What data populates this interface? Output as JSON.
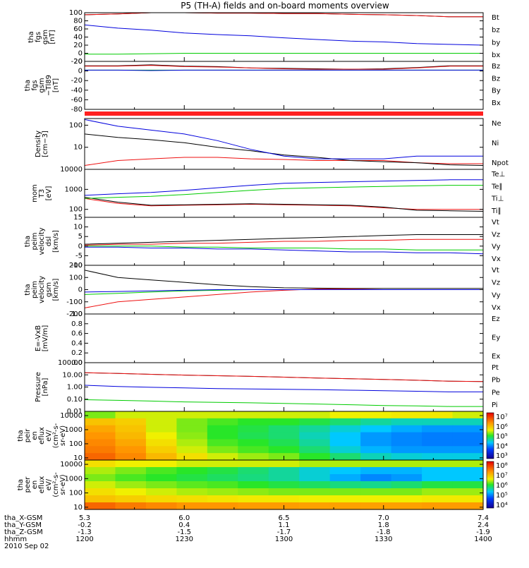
{
  "title": "P5 (TH-A) fields and on-board moments overview",
  "date_label": "2010 Sep 02",
  "colors": {
    "black": "#000000",
    "red": "#ee1111",
    "green": "#00cc00",
    "blue": "#0000dd",
    "status_bar": "#ff2020"
  },
  "time_axis": {
    "rows": [
      {
        "name": "tha_X-GSM",
        "values": [
          "5.3",
          "6.0",
          "6.5",
          "7.0",
          "7.4"
        ]
      },
      {
        "name": "tha_Y-GSM",
        "values": [
          "-0.2",
          "0.4",
          "1.1",
          "1.8",
          "2.4"
        ]
      },
      {
        "name": "tha_Z-GSM",
        "values": [
          "-1.3",
          "-1.5",
          "-1.7",
          "-1.8",
          "-1.9"
        ]
      },
      {
        "name": "hhmm",
        "values": [
          "1200",
          "1230",
          "1300",
          "1330",
          "1400"
        ]
      }
    ]
  },
  "chart_data": [
    {
      "type": "line",
      "ylabel": [
        "tha",
        "fgs",
        "gsm",
        "[nT]"
      ],
      "ylim": [
        -20,
        100
      ],
      "ticks": [
        "100",
        "80",
        "60",
        "40",
        "20",
        "0",
        "-20"
      ],
      "x": [
        "12:00",
        "12:10",
        "12:20",
        "12:30",
        "12:40",
        "12:50",
        "13:00",
        "13:10",
        "13:20",
        "13:30",
        "13:40",
        "13:50",
        "14:00"
      ],
      "series": [
        {
          "name": "Bt",
          "color": "black",
          "values": [
            95,
            97,
            100,
            100,
            99,
            99,
            98,
            98,
            96,
            95,
            93,
            90,
            90
          ]
        },
        {
          "name": "bz",
          "color": "red",
          "values": [
            95,
            97,
            100,
            100,
            99,
            99,
            98,
            98,
            96,
            95,
            93,
            90,
            90
          ]
        },
        {
          "name": "by",
          "color": "green",
          "values": [
            -2,
            -2,
            -1,
            0,
            0,
            0,
            0,
            0,
            0,
            0,
            0,
            0,
            0
          ]
        },
        {
          "name": "bx",
          "color": "blue",
          "values": [
            70,
            62,
            57,
            50,
            46,
            43,
            38,
            34,
            30,
            28,
            24,
            22,
            20
          ]
        }
      ]
    },
    {
      "type": "line",
      "ylabel": [
        "tha",
        "fgs",
        "gsm",
        "−Tl89",
        "[nT]"
      ],
      "ylim": [
        -90,
        20
      ],
      "ticks": [
        "20",
        "0",
        "-20",
        "-40",
        "-60",
        "-80"
      ],
      "x": [
        "12:00",
        "12:10",
        "12:20",
        "12:30",
        "12:40",
        "12:50",
        "13:00",
        "13:10",
        "13:20",
        "13:30",
        "13:40",
        "13:50",
        "14:00"
      ],
      "series": [
        {
          "name": "Bz",
          "color": "black",
          "values": [
            10,
            10,
            12,
            9,
            8,
            5,
            4,
            3,
            2,
            3,
            6,
            10,
            10
          ]
        },
        {
          "name": "Bz",
          "color": "red",
          "values": [
            9,
            9,
            11,
            8,
            7,
            5,
            3,
            2,
            2,
            2,
            5,
            9,
            9
          ]
        },
        {
          "name": "By",
          "color": "green",
          "values": [
            0,
            0,
            0,
            0,
            0,
            0,
            0,
            0,
            0,
            0,
            0,
            0,
            0
          ]
        },
        {
          "name": "Bx",
          "color": "blue",
          "values": [
            0,
            0,
            -1,
            0,
            0,
            0,
            0,
            0,
            0,
            0,
            0,
            0,
            0
          ]
        }
      ]
    },
    {
      "type": "line",
      "ylabel": [
        "Density",
        "[cm−3]"
      ],
      "log": true,
      "ylim": [
        1,
        200
      ],
      "ticks": [
        "100",
        "10"
      ],
      "tick_values": [
        100,
        10
      ],
      "x": [
        "12:00",
        "12:10",
        "12:20",
        "12:30",
        "12:40",
        "12:50",
        "13:00",
        "13:10",
        "13:20",
        "13:30",
        "13:40",
        "13:50",
        "14:00"
      ],
      "series": [
        {
          "name": "Ne",
          "color": "red",
          "values": [
            1.5,
            2.5,
            3,
            3.5,
            3.5,
            3,
            2.8,
            2.5,
            2.5,
            2.5,
            2,
            1.8,
            1.8
          ]
        },
        {
          "name": "Ni",
          "color": "black",
          "values": [
            40,
            28,
            22,
            16,
            10,
            7,
            4.5,
            3.5,
            2.5,
            2.2,
            2,
            1.6,
            1.5
          ]
        },
        {
          "name": "Npot",
          "color": "blue",
          "values": [
            180,
            90,
            60,
            40,
            20,
            8,
            4,
            3,
            3,
            3,
            4,
            4,
            4
          ]
        }
      ]
    },
    {
      "type": "line",
      "ylabel": [
        "mom",
        "T3",
        "[eV]"
      ],
      "log": true,
      "ylim": [
        40,
        10000
      ],
      "ticks": [
        "10000",
        "1000",
        "100"
      ],
      "tick_values": [
        10000,
        1000,
        100
      ],
      "x": [
        "12:00",
        "12:10",
        "12:20",
        "12:30",
        "12:40",
        "12:50",
        "13:00",
        "13:10",
        "13:20",
        "13:30",
        "13:40",
        "13:50",
        "14:00"
      ],
      "series": [
        {
          "name": "Te⊥",
          "color": "red",
          "values": [
            350,
            200,
            150,
            160,
            170,
            180,
            170,
            160,
            150,
            120,
            100,
            100,
            100
          ]
        },
        {
          "name": "Te∥",
          "color": "black",
          "values": [
            400,
            230,
            160,
            170,
            180,
            190,
            180,
            170,
            160,
            130,
            90,
            85,
            80
          ]
        },
        {
          "name": "Ti⊥",
          "color": "blue",
          "values": [
            500,
            600,
            700,
            900,
            1200,
            1600,
            2000,
            2200,
            2400,
            2600,
            2800,
            3000,
            3000
          ]
        },
        {
          "name": "Ti∥",
          "color": "green",
          "values": [
            350,
            400,
            450,
            550,
            700,
            900,
            1100,
            1200,
            1300,
            1400,
            1500,
            1600,
            1600
          ]
        }
      ]
    },
    {
      "type": "line",
      "ylabel": [
        "tha",
        "peim",
        "velocity",
        "dsl",
        "[km/s]"
      ],
      "ylim": [
        -10,
        15
      ],
      "ticks": [
        "15",
        "10",
        "5",
        "0",
        "-5",
        "-10"
      ],
      "x": [
        "12:00",
        "12:10",
        "12:20",
        "12:30",
        "12:40",
        "12:50",
        "13:00",
        "13:10",
        "13:20",
        "13:30",
        "13:40",
        "13:50",
        "14:00"
      ],
      "series": [
        {
          "name": "Vt",
          "color": "black",
          "values": [
            1,
            1.5,
            2,
            2.5,
            3,
            3.5,
            4,
            4.5,
            5,
            5.5,
            6,
            6,
            6
          ]
        },
        {
          "name": "Vz",
          "color": "red",
          "values": [
            0.5,
            1,
            1,
            1.5,
            1.5,
            2,
            2.5,
            2.5,
            3,
            3,
            3.5,
            3.5,
            3.5
          ]
        },
        {
          "name": "Vy",
          "color": "green",
          "values": [
            0,
            0,
            0,
            -0.5,
            -0.5,
            -1,
            -1,
            -1,
            -1.5,
            -1.5,
            -2,
            -2,
            -2
          ]
        },
        {
          "name": "Vx",
          "color": "blue",
          "values": [
            -0.5,
            -0.5,
            -1,
            -1,
            -1.5,
            -1.5,
            -2,
            -2.5,
            -3,
            -3,
            -3.5,
            -3.5,
            -4
          ]
        }
      ]
    },
    {
      "type": "line",
      "ylabel": [
        "tha",
        "peim",
        "velocity",
        "gsm",
        "[km/s]"
      ],
      "ylim": [
        -200,
        200
      ],
      "ticks": [
        "200",
        "100",
        "0",
        "-100",
        "-200"
      ],
      "x": [
        "12:00",
        "12:10",
        "12:20",
        "12:30",
        "12:40",
        "12:50",
        "13:00",
        "13:10",
        "13:20",
        "13:30",
        "13:40",
        "13:50",
        "14:00"
      ],
      "series": [
        {
          "name": "Vt",
          "color": "black",
          "values": [
            160,
            100,
            80,
            60,
            40,
            25,
            15,
            12,
            10,
            10,
            10,
            10,
            10
          ]
        },
        {
          "name": "Vz",
          "color": "red",
          "values": [
            -150,
            -100,
            -80,
            -60,
            -40,
            -20,
            -5,
            5,
            5,
            0,
            0,
            0,
            0
          ]
        },
        {
          "name": "Vy",
          "color": "green",
          "values": [
            -40,
            -30,
            -20,
            -10,
            -5,
            0,
            0,
            0,
            0,
            0,
            0,
            0,
            0
          ]
        },
        {
          "name": "Vx",
          "color": "blue",
          "values": [
            -20,
            -15,
            -10,
            -5,
            0,
            0,
            0,
            0,
            0,
            0,
            0,
            0,
            0
          ]
        }
      ]
    },
    {
      "type": "line",
      "ylabel": [
        "E=-VxB",
        "[mV/m]"
      ],
      "ylim": [
        0,
        1
      ],
      "ticks": [
        "1.0",
        "0.8",
        "0.6",
        "0.4",
        "0.2",
        "0.0"
      ],
      "x": [],
      "series": [
        {
          "name": "Ez",
          "color": "red",
          "values": []
        },
        {
          "name": "Ey",
          "color": "green",
          "values": []
        },
        {
          "name": "Ex",
          "color": "blue",
          "values": []
        }
      ]
    },
    {
      "type": "line",
      "ylabel": [
        "Pressure",
        "[nPa]"
      ],
      "log": true,
      "ylim": [
        0.01,
        100
      ],
      "ticks": [
        "100.00",
        "10.00",
        "1.00",
        "0.10",
        "0.01"
      ],
      "tick_values": [
        100,
        10,
        1,
        0.1,
        0.01
      ],
      "x": [
        "12:00",
        "12:10",
        "12:20",
        "12:30",
        "12:40",
        "12:50",
        "13:00",
        "13:10",
        "13:20",
        "13:30",
        "13:40",
        "13:50",
        "14:00"
      ],
      "series": [
        {
          "name": "Pt",
          "color": "black",
          "values": [
            15,
            13,
            11,
            9.5,
            8.5,
            7.5,
            6.5,
            5.5,
            4.8,
            4.2,
            3.6,
            3.0,
            2.8
          ]
        },
        {
          "name": "Pb",
          "color": "red",
          "values": [
            15,
            13,
            11,
            9.5,
            8.5,
            7.5,
            6.5,
            5.5,
            4.8,
            4.2,
            3.6,
            3.0,
            2.8
          ]
        },
        {
          "name": "Pe",
          "color": "green",
          "values": [
            0.09,
            0.08,
            0.07,
            0.06,
            0.055,
            0.05,
            0.045,
            0.04,
            0.035,
            0.03,
            0.028,
            0.025,
            0.025
          ]
        },
        {
          "name": "Pi",
          "color": "blue",
          "values": [
            1.4,
            1.1,
            0.95,
            0.85,
            0.75,
            0.7,
            0.65,
            0.6,
            0.55,
            0.5,
            0.45,
            0.4,
            0.4
          ]
        }
      ]
    },
    {
      "type": "heatmap",
      "ylabel": [
        "tha",
        "peir",
        "en",
        "eflux",
        "eV/",
        "(cm²-s-",
        "sr-eV)"
      ],
      "log": true,
      "ylim": [
        7,
        20000
      ],
      "ticks": [
        "10000",
        "1000",
        "100",
        "10"
      ],
      "tick_values": [
        10000,
        1000,
        100,
        10
      ],
      "colorbar": {
        "ticks": [
          "10⁷",
          "10⁶",
          "10⁵",
          "10⁴",
          "10³"
        ]
      },
      "x": [
        "12:00",
        "12:10",
        "12:20",
        "12:30",
        "12:40",
        "12:50",
        "13:00",
        "13:10",
        "13:20",
        "13:30",
        "13:40",
        "13:50",
        "14:00"
      ],
      "values": [
        [
          0.55,
          0.6,
          0.6,
          0.6,
          0.6,
          0.6,
          0.6,
          0.6,
          0.62,
          0.62,
          0.63,
          0.63,
          0.6
        ],
        [
          0.7,
          0.68,
          0.6,
          0.55,
          0.52,
          0.5,
          0.5,
          0.48,
          0.45,
          0.42,
          0.4,
          0.4,
          0.4
        ],
        [
          0.75,
          0.7,
          0.6,
          0.55,
          0.5,
          0.48,
          0.45,
          0.42,
          0.38,
          0.35,
          0.32,
          0.3,
          0.3
        ],
        [
          0.78,
          0.72,
          0.62,
          0.56,
          0.5,
          0.47,
          0.45,
          0.4,
          0.35,
          0.3,
          0.28,
          0.27,
          0.27
        ],
        [
          0.8,
          0.75,
          0.65,
          0.58,
          0.52,
          0.5,
          0.47,
          0.42,
          0.35,
          0.3,
          0.28,
          0.27,
          0.27
        ],
        [
          0.82,
          0.78,
          0.68,
          0.6,
          0.55,
          0.52,
          0.5,
          0.45,
          0.38,
          0.33,
          0.3,
          0.3,
          0.3
        ],
        [
          0.85,
          0.8,
          0.72,
          0.65,
          0.6,
          0.57,
          0.55,
          0.5,
          0.45,
          0.4,
          0.38,
          0.37,
          0.37
        ]
      ]
    },
    {
      "type": "heatmap",
      "ylabel": [
        "tha",
        "peer",
        "en",
        "eflux",
        "eV/",
        "(cm²-s-",
        "sr-eV)"
      ],
      "log": true,
      "ylim": [
        7,
        20000
      ],
      "ticks": [
        "10000",
        "1000",
        "100",
        "10"
      ],
      "tick_values": [
        10000,
        1000,
        100,
        10
      ],
      "colorbar": {
        "ticks": [
          "10⁸",
          "10⁷",
          "10⁶",
          "10⁵",
          "10⁴"
        ]
      },
      "x": [
        "12:00",
        "12:10",
        "12:20",
        "12:30",
        "12:40",
        "12:50",
        "13:00",
        "13:10",
        "13:20",
        "13:30",
        "13:40",
        "13:50",
        "14:00"
      ],
      "values": [
        [
          0.65,
          0.62,
          0.62,
          0.6,
          0.6,
          0.6,
          0.6,
          0.58,
          0.58,
          0.58,
          0.58,
          0.58,
          0.58
        ],
        [
          0.58,
          0.55,
          0.52,
          0.5,
          0.48,
          0.45,
          0.42,
          0.38,
          0.35,
          0.33,
          0.33,
          0.35,
          0.35
        ],
        [
          0.55,
          0.52,
          0.5,
          0.48,
          0.46,
          0.44,
          0.42,
          0.38,
          0.32,
          0.28,
          0.3,
          0.35,
          0.35
        ],
        [
          0.6,
          0.57,
          0.55,
          0.53,
          0.52,
          0.5,
          0.48,
          0.46,
          0.44,
          0.43,
          0.45,
          0.48,
          0.48
        ],
        [
          0.65,
          0.62,
          0.6,
          0.58,
          0.57,
          0.56,
          0.55,
          0.55,
          0.55,
          0.55,
          0.55,
          0.57,
          0.57
        ],
        [
          0.7,
          0.68,
          0.66,
          0.65,
          0.64,
          0.63,
          0.63,
          0.62,
          0.62,
          0.62,
          0.62,
          0.63,
          0.63
        ],
        [
          0.85,
          0.82,
          0.8,
          0.78,
          0.78,
          0.77,
          0.77,
          0.76,
          0.76,
          0.76,
          0.76,
          0.77,
          0.77
        ]
      ]
    }
  ]
}
